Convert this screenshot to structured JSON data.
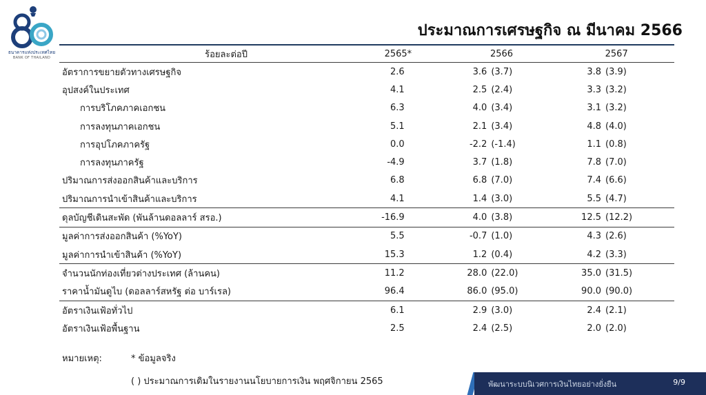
{
  "logo": {
    "number": "80",
    "caption_th": "ธนาคารแห่งประเทศไทย",
    "caption_en": "BANK OF THAILAND",
    "colors": {
      "blue": "#1d3f7a",
      "teal": "#3aa6c6",
      "light": "#8fc8e6"
    }
  },
  "title": "ประมาณการเศรษฐกิจ ณ มีนาคม 2566",
  "table": {
    "headers": {
      "label": "ร้อยละต่อปี",
      "y2565": "2565*",
      "y2566": "2566",
      "y2567": "2567"
    },
    "rows": [
      {
        "label": "อัตราการขยายตัวทางเศรษฐกิจ",
        "y2565": "2.6",
        "y2566": "3.6",
        "y2566_prev": "(3.7)",
        "y2567": "3.8",
        "y2567_prev": "(3.9)"
      },
      {
        "label": "อุปสงค์ในประเทศ",
        "y2565": "4.1",
        "y2566": "2.5",
        "y2566_prev": "(2.4)",
        "y2567": "3.3",
        "y2567_prev": "(3.2)"
      },
      {
        "label": "การบริโภคภาคเอกชน",
        "y2565": "6.3",
        "y2566": "4.0",
        "y2566_prev": "(3.4)",
        "y2567": "3.1",
        "y2567_prev": "(3.2)"
      },
      {
        "label": "การลงทุนภาคเอกชน",
        "y2565": "5.1",
        "y2566": "2.1",
        "y2566_prev": "(3.4)",
        "y2567": "4.8",
        "y2567_prev": "(4.0)"
      },
      {
        "label": "การอุปโภคภาครัฐ",
        "y2565": "0.0",
        "y2566": "-2.2",
        "y2566_prev": "(-1.4)",
        "y2567": "1.1",
        "y2567_prev": "(0.8)"
      },
      {
        "label": "การลงทุนภาครัฐ",
        "y2565": "-4.9",
        "y2566": "3.7",
        "y2566_prev": "(1.8)",
        "y2567": "7.8",
        "y2567_prev": "(7.0)"
      },
      {
        "label": "ปริมาณการส่งออกสินค้าและบริการ",
        "y2565": "6.8",
        "y2566": "6.8",
        "y2566_prev": "(7.0)",
        "y2567": "7.4",
        "y2567_prev": "(6.6)"
      },
      {
        "label": "ปริมาณการนำเข้าสินค้าและบริการ",
        "y2565": "4.1",
        "y2566": "1.4",
        "y2566_prev": "(3.0)",
        "y2567": "5.5",
        "y2567_prev": "(4.7)"
      },
      {
        "label": "ดุลบัญชีเดินสะพัด (พันล้านดอลลาร์ สรอ.)",
        "y2565": "-16.9",
        "y2566": "4.0",
        "y2566_prev": "(3.8)",
        "y2567": "12.5",
        "y2567_prev": "(12.2)"
      },
      {
        "label": "มูลค่าการส่งออกสินค้า (%YoY)",
        "y2565": "5.5",
        "y2566": "-0.7",
        "y2566_prev": "(1.0)",
        "y2567": "4.3",
        "y2567_prev": "(2.6)"
      },
      {
        "label": "มูลค่าการนำเข้าสินค้า (%YoY)",
        "y2565": "15.3",
        "y2566": "1.2",
        "y2566_prev": "(0.4)",
        "y2567": "4.2",
        "y2567_prev": "(3.3)"
      },
      {
        "label": "จำนวนนักท่องเที่ยวต่างประเทศ (ล้านคน)",
        "y2565": "11.2",
        "y2566": "28.0",
        "y2566_prev": "(22.0)",
        "y2567": "35.0",
        "y2567_prev": "(31.5)"
      },
      {
        "label": "ราคาน้ำมันดูไบ (ดอลลาร์สหรัฐ ต่อ บาร์เรล)",
        "y2565": "96.4",
        "y2566": "86.0",
        "y2566_prev": "(95.0)",
        "y2567": "90.0",
        "y2567_prev": "(90.0)"
      },
      {
        "label": "อัตราเงินเฟ้อทั่วไป",
        "y2565": "6.1",
        "y2566": "2.9",
        "y2566_prev": "(3.0)",
        "y2567": "2.4",
        "y2567_prev": "(2.1)"
      },
      {
        "label": "อัตราเงินเฟ้อพื้นฐาน",
        "y2565": "2.5",
        "y2566": "2.4",
        "y2566_prev": "(2.5)",
        "y2567": "2.0",
        "y2567_prev": "(2.0)"
      }
    ]
  },
  "notes": {
    "label": "หมายเหตุ:",
    "star": "* ข้อมูลจริง",
    "paren": "( ) ประมาณการเดิมในรายงานนโยบายการเงิน พฤศจิกายน 2565"
  },
  "footer": {
    "text": "พัฒนาระบบนิเวศการเงินไทยอย่างยั่งยืน",
    "page": "9/9",
    "bg_color": "#1d2f5a"
  }
}
